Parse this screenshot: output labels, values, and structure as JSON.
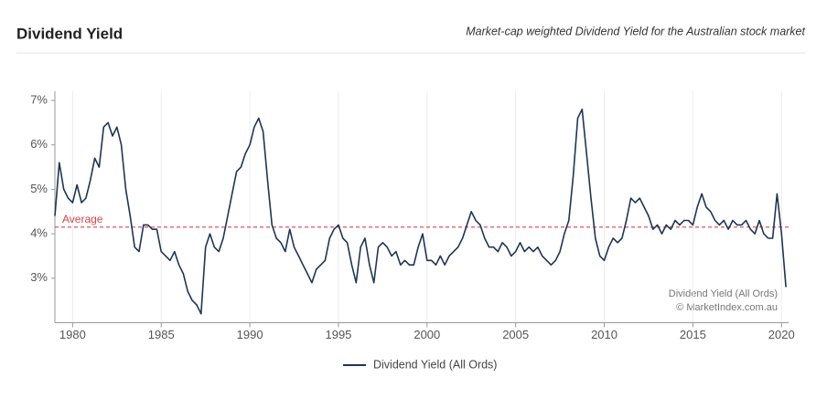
{
  "chart_data": {
    "type": "line",
    "title": "Dividend Yield",
    "subtitle": "Market-cap weighted Dividend Yield for the Australian stock market",
    "x": [
      1979,
      1979.25,
      1979.5,
      1979.75,
      1980,
      1980.25,
      1980.5,
      1980.75,
      1981,
      1981.25,
      1981.5,
      1981.75,
      1982,
      1982.25,
      1982.5,
      1982.75,
      1983,
      1983.25,
      1983.5,
      1983.75,
      1984,
      1984.25,
      1984.5,
      1984.75,
      1985,
      1985.25,
      1985.5,
      1985.75,
      1986,
      1986.25,
      1986.5,
      1986.75,
      1987,
      1987.25,
      1987.5,
      1987.75,
      1988,
      1988.25,
      1988.5,
      1988.75,
      1989,
      1989.25,
      1989.5,
      1989.75,
      1990,
      1990.25,
      1990.5,
      1990.75,
      1991,
      1991.25,
      1991.5,
      1991.75,
      1992,
      1992.25,
      1992.5,
      1992.75,
      1993,
      1993.25,
      1993.5,
      1993.75,
      1994,
      1994.25,
      1994.5,
      1994.75,
      1995,
      1995.25,
      1995.5,
      1995.75,
      1996,
      1996.25,
      1996.5,
      1996.75,
      1997,
      1997.25,
      1997.5,
      1997.75,
      1998,
      1998.25,
      1998.5,
      1998.75,
      1999,
      1999.25,
      1999.5,
      1999.75,
      2000,
      2000.25,
      2000.5,
      2000.75,
      2001,
      2001.25,
      2001.5,
      2001.75,
      2002,
      2002.25,
      2002.5,
      2002.75,
      2003,
      2003.25,
      2003.5,
      2003.75,
      2004,
      2004.25,
      2004.5,
      2004.75,
      2005,
      2005.25,
      2005.5,
      2005.75,
      2006,
      2006.25,
      2006.5,
      2006.75,
      2007,
      2007.25,
      2007.5,
      2007.75,
      2008,
      2008.25,
      2008.5,
      2008.75,
      2009,
      2009.25,
      2009.5,
      2009.75,
      2010,
      2010.25,
      2010.5,
      2010.75,
      2011,
      2011.25,
      2011.5,
      2011.75,
      2012,
      2012.25,
      2012.5,
      2012.75,
      2013,
      2013.25,
      2013.5,
      2013.75,
      2014,
      2014.25,
      2014.5,
      2014.75,
      2015,
      2015.25,
      2015.5,
      2015.75,
      2016,
      2016.25,
      2016.5,
      2016.75,
      2017,
      2017.25,
      2017.5,
      2017.75,
      2018,
      2018.25,
      2018.5,
      2018.75,
      2019,
      2019.25,
      2019.5,
      2019.75,
      2020,
      2020.25
    ],
    "series": [
      {
        "name": "Dividend Yield (All Ords)",
        "color": "#1f3552",
        "values": [
          4.4,
          5.6,
          5.0,
          4.8,
          4.7,
          5.1,
          4.7,
          4.8,
          5.2,
          5.7,
          5.5,
          6.4,
          6.5,
          6.2,
          6.4,
          6.0,
          5.0,
          4.4,
          3.7,
          3.6,
          4.2,
          4.2,
          4.1,
          4.1,
          3.6,
          3.5,
          3.4,
          3.6,
          3.3,
          3.1,
          2.7,
          2.5,
          2.4,
          2.2,
          3.7,
          4.0,
          3.7,
          3.6,
          3.9,
          4.4,
          4.9,
          5.4,
          5.5,
          5.8,
          6.0,
          6.4,
          6.6,
          6.3,
          5.2,
          4.2,
          3.9,
          3.8,
          3.6,
          4.1,
          3.7,
          3.5,
          3.3,
          3.1,
          2.9,
          3.2,
          3.3,
          3.4,
          3.9,
          4.1,
          4.2,
          3.9,
          3.8,
          3.3,
          2.9,
          3.7,
          3.9,
          3.3,
          2.9,
          3.7,
          3.8,
          3.7,
          3.5,
          3.6,
          3.3,
          3.4,
          3.3,
          3.3,
          3.7,
          4.0,
          3.4,
          3.4,
          3.3,
          3.5,
          3.3,
          3.5,
          3.6,
          3.7,
          3.9,
          4.2,
          4.5,
          4.3,
          4.2,
          3.9,
          3.7,
          3.7,
          3.6,
          3.8,
          3.7,
          3.5,
          3.6,
          3.8,
          3.6,
          3.7,
          3.6,
          3.7,
          3.5,
          3.4,
          3.3,
          3.4,
          3.6,
          4.0,
          4.3,
          5.3,
          6.6,
          6.8,
          5.8,
          4.8,
          3.9,
          3.5,
          3.4,
          3.7,
          3.9,
          3.8,
          3.9,
          4.3,
          4.8,
          4.7,
          4.8,
          4.6,
          4.4,
          4.1,
          4.2,
          4.0,
          4.2,
          4.1,
          4.3,
          4.2,
          4.3,
          4.3,
          4.2,
          4.6,
          4.9,
          4.6,
          4.5,
          4.3,
          4.2,
          4.3,
          4.1,
          4.3,
          4.2,
          4.2,
          4.3,
          4.1,
          4.0,
          4.3,
          4.0,
          3.9,
          3.9,
          4.9,
          4.0,
          2.8
        ]
      }
    ],
    "xlim": [
      1979,
      2020.4
    ],
    "ylim": [
      2,
      7
    ],
    "xticks": [
      1980,
      1985,
      1990,
      1995,
      2000,
      2005,
      2010,
      2015,
      2020
    ],
    "yticks": [
      {
        "value": 3,
        "label": "3%"
      },
      {
        "value": 4,
        "label": "4%"
      },
      {
        "value": 5,
        "label": "5%"
      },
      {
        "value": 6,
        "label": "6%"
      },
      {
        "value": 7,
        "label": "7%"
      }
    ],
    "average": {
      "label": "Average",
      "value": 4.15,
      "color": "#d9434b"
    },
    "annotations": [
      "Dividend Yield (All Ords)",
      "© MarketIndex.com.au"
    ],
    "grid": "x"
  }
}
